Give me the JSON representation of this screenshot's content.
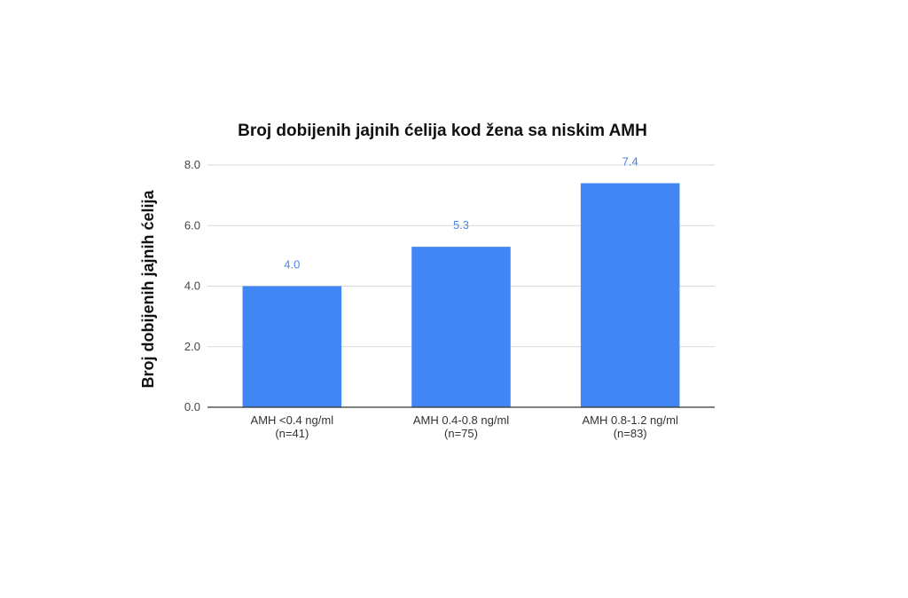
{
  "chart_data": {
    "type": "bar",
    "title": "Broj dobijenih jajnih ćelija kod žena sa niskim AMH",
    "xlabel": "",
    "ylabel": "Broj dobijenih jajnih ćelija",
    "categories": [
      [
        "AMH <0.4 ng/ml",
        "(n=41)"
      ],
      [
        "AMH 0.4-0.8 ng/ml",
        "(n=75)"
      ],
      [
        "AMH 0.8-1.2 ng/ml",
        "(n=83)"
      ]
    ],
    "values": [
      4.0,
      5.3,
      7.4
    ],
    "data_labels": [
      "4.0",
      "5.3",
      "7.4"
    ],
    "ylim": [
      0,
      8
    ],
    "yticks": [
      "0.0",
      "2.0",
      "4.0",
      "6.0",
      "8.0"
    ],
    "grid": true,
    "legend": "none",
    "colors": {
      "bar": "#4285f4",
      "data_label": "#4a86e8",
      "grid": "#d9d9d9"
    }
  }
}
